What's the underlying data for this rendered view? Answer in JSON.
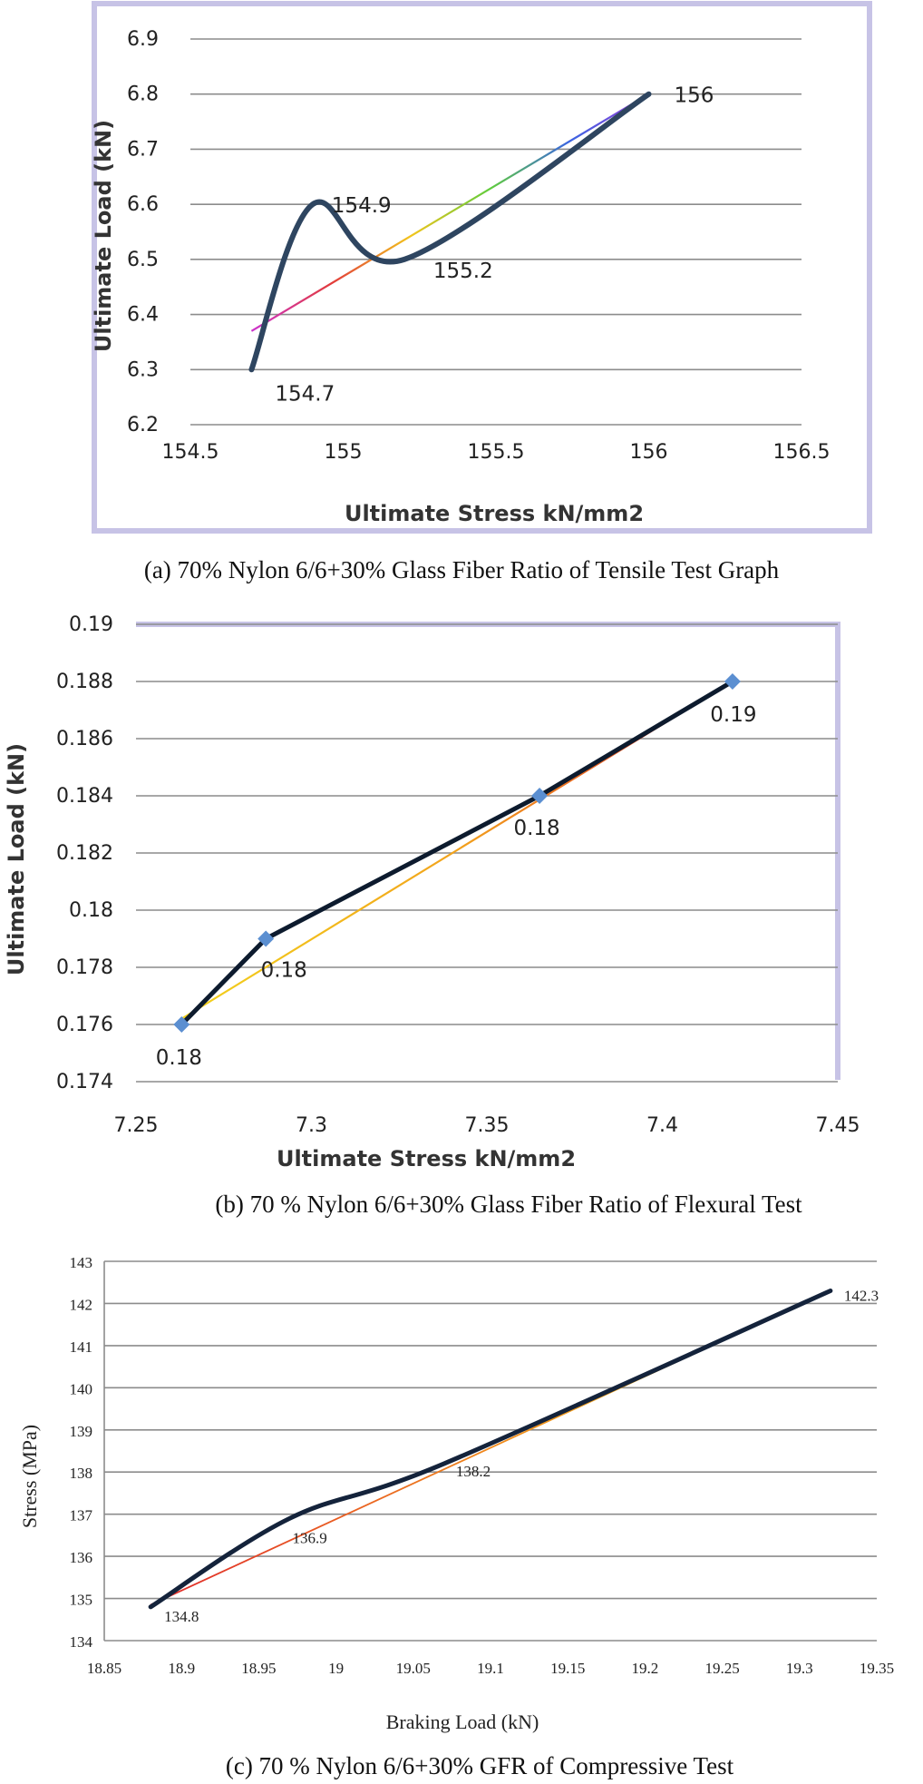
{
  "chart_data": [
    {
      "type": "line",
      "caption": "(a) 70% Nylon 6/6+30% Glass Fiber Ratio of Tensile Test Graph",
      "xlabel": "Ultimate Stress kN/mm2",
      "ylabel": "Ultimate Load (kN)",
      "xlim": [
        154.5,
        156.5
      ],
      "ylim": [
        6.2,
        6.9
      ],
      "xticks": [
        "154.5",
        "155",
        "155.5",
        "156",
        "156.5"
      ],
      "yticks": [
        "6.2",
        "6.3",
        "6.4",
        "6.5",
        "6.6",
        "6.7",
        "6.8",
        "6.9"
      ],
      "grid": "horizontal",
      "series": [
        {
          "x": [
            154.7,
            154.9,
            155.2,
            156
          ],
          "y": [
            6.3,
            6.6,
            6.5,
            6.8
          ],
          "smooth": true,
          "color": "#2e4560"
        }
      ],
      "data_labels": [
        "154.7",
        "154.9",
        "155.2",
        "156"
      ],
      "trendline": {
        "x": [
          154.7,
          156
        ],
        "y": [
          6.37,
          6.8
        ],
        "color": "rainbow"
      }
    },
    {
      "type": "line",
      "caption": "(b)  70 % Nylon 6/6+30% Glass Fiber Ratio of Flexural Test",
      "xlabel": "Ultimate Stress kN/mm2",
      "ylabel": "Ultimate Load (kN)",
      "xlim": [
        7.25,
        7.45
      ],
      "ylim": [
        0.174,
        0.19
      ],
      "xticks": [
        "7.25",
        "7.3",
        "7.35",
        "7.4",
        "7.45"
      ],
      "yticks": [
        "0.174",
        "0.176",
        "0.178",
        "0.18",
        "0.182",
        "0.184",
        "0.186",
        "0.188",
        "0.19"
      ],
      "grid": "horizontal",
      "series": [
        {
          "x": [
            7.263,
            7.287,
            7.365,
            7.42
          ],
          "y": [
            0.176,
            0.179,
            0.184,
            0.188
          ],
          "smooth": false,
          "color": "#0d1b2e",
          "marker": "diamond",
          "marker_color": "#5b8fd1"
        }
      ],
      "data_labels": [
        "0.18",
        "0.18",
        "0.18",
        "0.19"
      ],
      "trendline": {
        "x": [
          7.263,
          7.42
        ],
        "y": [
          0.1762,
          0.188
        ],
        "color": "yellow-red"
      }
    },
    {
      "type": "line",
      "caption": "(c) 70 % Nylon 6/6+30% GFR of Compressive Test",
      "xlabel": "Braking Load (kN)",
      "ylabel": "Stress (MPa)",
      "xlim": [
        18.85,
        19.35
      ],
      "ylim": [
        134,
        143
      ],
      "xticks": [
        "18.85",
        "18.9",
        "18.95",
        "19",
        "19.05",
        "19.1",
        "19.15",
        "19.2",
        "19.25",
        "19.3",
        "19.35"
      ],
      "yticks": [
        "134",
        "135",
        "136",
        "137",
        "138",
        "139",
        "140",
        "141",
        "142",
        "143"
      ],
      "grid": "horizontal",
      "series": [
        {
          "x": [
            18.88,
            18.97,
            19.07,
            19.32
          ],
          "y": [
            134.8,
            136.9,
            138.2,
            142.3
          ],
          "smooth": true,
          "color": "#14233b"
        }
      ],
      "data_labels": [
        "134.8",
        "136.9",
        "138.2",
        "142.3"
      ],
      "trendline": {
        "x": [
          18.88,
          19.32
        ],
        "y": [
          134.85,
          142.3
        ],
        "color": "red-yellow"
      }
    }
  ]
}
